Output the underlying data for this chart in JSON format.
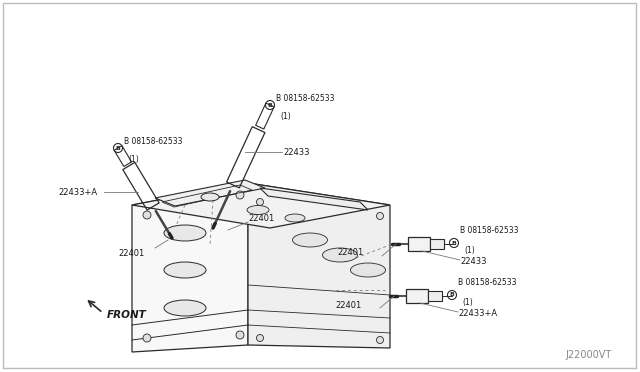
{
  "background_color": "#ffffff",
  "fig_width": 6.4,
  "fig_height": 3.72,
  "dpi": 100,
  "watermark": "J22000VT",
  "line_color": "#2a2a2a",
  "text_color": "#1a1a1a",
  "annotation_fontsize": 6.0,
  "bolt_label": "B 08158-62533\n  (1)",
  "labels": {
    "left_coil": "22433+A",
    "mid_coil": "22433",
    "left_plug1": "22401",
    "left_plug2": "22401",
    "right_top_bolt_label": "B 08158-62533\n  (1)",
    "right_top_coil": "22433",
    "right_top_plug": "22401",
    "right_bot_coil": "22433+A",
    "right_bot_plug": "22401",
    "front": "FRONT"
  }
}
